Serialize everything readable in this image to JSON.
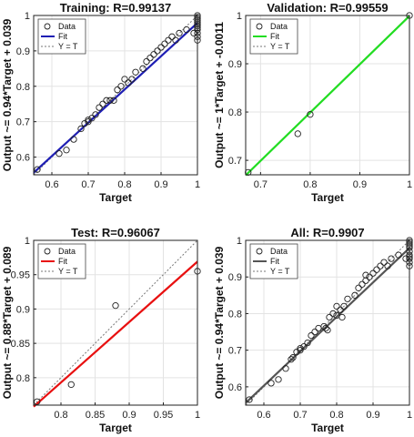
{
  "chart_data": [
    {
      "type": "scatter",
      "title": "Training: R=0.99137",
      "xlabel": "Target",
      "ylabel": "Output ~= 0.94*Target + 0.039",
      "xlim": [
        0.55,
        1.0
      ],
      "ylim": [
        0.55,
        1.0
      ],
      "xticks": [
        "0.6",
        "0.7",
        "0.8",
        "0.9",
        "1"
      ],
      "yticks": [
        "0.6",
        "0.7",
        "0.8",
        "0.9",
        "1"
      ],
      "fit_color": "#1f1fb4",
      "fit": {
        "slope": 0.94,
        "intercept": 0.039
      },
      "legend": [
        "Data",
        "Fit",
        "Y = T"
      ],
      "legend_position": "top-left",
      "series": [
        {
          "name": "Data",
          "points": [
            [
              0.56,
              0.565
            ],
            [
              0.62,
              0.61
            ],
            [
              0.64,
              0.62
            ],
            [
              0.66,
              0.65
            ],
            [
              0.68,
              0.68
            ],
            [
              0.69,
              0.695
            ],
            [
              0.7,
              0.7
            ],
            [
              0.7,
              0.705
            ],
            [
              0.71,
              0.71
            ],
            [
              0.72,
              0.72
            ],
            [
              0.73,
              0.74
            ],
            [
              0.74,
              0.75
            ],
            [
              0.75,
              0.76
            ],
            [
              0.76,
              0.76
            ],
            [
              0.77,
              0.76
            ],
            [
              0.78,
              0.79
            ],
            [
              0.79,
              0.8
            ],
            [
              0.8,
              0.82
            ],
            [
              0.81,
              0.81
            ],
            [
              0.82,
              0.82
            ],
            [
              0.83,
              0.84
            ],
            [
              0.85,
              0.85
            ],
            [
              0.86,
              0.87
            ],
            [
              0.87,
              0.88
            ],
            [
              0.88,
              0.89
            ],
            [
              0.89,
              0.9
            ],
            [
              0.9,
              0.91
            ],
            [
              0.91,
              0.92
            ],
            [
              0.92,
              0.93
            ],
            [
              0.93,
              0.94
            ],
            [
              0.94,
              0.93
            ],
            [
              0.95,
              0.95
            ],
            [
              0.97,
              0.96
            ],
            [
              0.99,
              0.95
            ],
            [
              1.0,
              0.93
            ],
            [
              1.0,
              0.94
            ],
            [
              1.0,
              0.95
            ],
            [
              1.0,
              0.96
            ],
            [
              1.0,
              0.97
            ],
            [
              1.0,
              0.98
            ],
            [
              1.0,
              0.99
            ],
            [
              1.0,
              1.0
            ],
            [
              1.0,
              0.995
            ],
            [
              1.0,
              0.985
            ],
            [
              1.0,
              0.975
            ],
            [
              1.0,
              0.965
            ]
          ]
        }
      ]
    },
    {
      "type": "scatter",
      "title": "Validation: R=0.99559",
      "xlabel": "Target",
      "ylabel": "Output ~= 1*Target + -0.0011",
      "xlim": [
        0.67,
        1.0
      ],
      "ylim": [
        0.67,
        1.0
      ],
      "xticks": [
        "0.7",
        "0.8",
        "0.9",
        "1"
      ],
      "yticks": [
        "0.7",
        "0.8",
        "0.9",
        "1"
      ],
      "fit_color": "#22dd22",
      "fit": {
        "slope": 1.0,
        "intercept": -0.0011
      },
      "legend": [
        "Data",
        "Fit",
        "Y = T"
      ],
      "legend_position": "top-left",
      "series": [
        {
          "name": "Data",
          "points": [
            [
              0.675,
              0.675
            ],
            [
              0.775,
              0.755
            ],
            [
              0.8,
              0.795
            ],
            [
              1.0,
              1.0
            ]
          ]
        }
      ]
    },
    {
      "type": "scatter",
      "title": "Test: R=0.96067",
      "xlabel": "Target",
      "ylabel": "Output ~= 0.88*Target + 0.089",
      "xlim": [
        0.76,
        1.0
      ],
      "ylim": [
        0.76,
        1.0
      ],
      "xticks": [
        "0.8",
        "0.85",
        "0.9",
        "0.95",
        "1"
      ],
      "yticks": [
        "0.8",
        "0.85",
        "0.9",
        "0.95",
        "1"
      ],
      "fit_color": "#e81010",
      "fit": {
        "slope": 0.88,
        "intercept": 0.089
      },
      "legend": [
        "Data",
        "Fit",
        "Y = T"
      ],
      "legend_position": "top-left",
      "series": [
        {
          "name": "Data",
          "points": [
            [
              0.765,
              0.765
            ],
            [
              0.815,
              0.79
            ],
            [
              0.88,
              0.905
            ],
            [
              1.0,
              0.955
            ]
          ]
        }
      ]
    },
    {
      "type": "scatter",
      "title": "All: R=0.9907",
      "xlabel": "Target",
      "ylabel": "Output ~= 0.94*Target + 0.039",
      "xlim": [
        0.55,
        1.0
      ],
      "ylim": [
        0.55,
        1.0
      ],
      "xticks": [
        "0.6",
        "0.7",
        "0.8",
        "0.9",
        "1"
      ],
      "yticks": [
        "0.6",
        "0.7",
        "0.8",
        "0.9",
        "1"
      ],
      "fit_color": "#555555",
      "fit": {
        "slope": 0.94,
        "intercept": 0.039
      },
      "legend": [
        "Data",
        "Fit",
        "Y = T"
      ],
      "legend_position": "top-left",
      "series": [
        {
          "name": "Data",
          "points": [
            [
              0.56,
              0.565
            ],
            [
              0.62,
              0.61
            ],
            [
              0.64,
              0.62
            ],
            [
              0.66,
              0.65
            ],
            [
              0.675,
              0.675
            ],
            [
              0.68,
              0.68
            ],
            [
              0.69,
              0.695
            ],
            [
              0.7,
              0.7
            ],
            [
              0.7,
              0.705
            ],
            [
              0.71,
              0.71
            ],
            [
              0.72,
              0.72
            ],
            [
              0.73,
              0.74
            ],
            [
              0.74,
              0.75
            ],
            [
              0.75,
              0.76
            ],
            [
              0.765,
              0.765
            ],
            [
              0.77,
              0.76
            ],
            [
              0.775,
              0.755
            ],
            [
              0.78,
              0.79
            ],
            [
              0.79,
              0.8
            ],
            [
              0.8,
              0.795
            ],
            [
              0.8,
              0.82
            ],
            [
              0.81,
              0.81
            ],
            [
              0.815,
              0.79
            ],
            [
              0.82,
              0.82
            ],
            [
              0.83,
              0.84
            ],
            [
              0.85,
              0.85
            ],
            [
              0.86,
              0.87
            ],
            [
              0.87,
              0.88
            ],
            [
              0.88,
              0.905
            ],
            [
              0.88,
              0.89
            ],
            [
              0.89,
              0.9
            ],
            [
              0.9,
              0.91
            ],
            [
              0.91,
              0.92
            ],
            [
              0.92,
              0.93
            ],
            [
              0.93,
              0.94
            ],
            [
              0.94,
              0.93
            ],
            [
              0.95,
              0.95
            ],
            [
              0.97,
              0.96
            ],
            [
              0.99,
              0.95
            ],
            [
              1.0,
              0.93
            ],
            [
              1.0,
              0.94
            ],
            [
              1.0,
              0.95
            ],
            [
              1.0,
              0.955
            ],
            [
              1.0,
              0.96
            ],
            [
              1.0,
              0.97
            ],
            [
              1.0,
              0.98
            ],
            [
              1.0,
              0.99
            ],
            [
              1.0,
              1.0
            ],
            [
              1.0,
              0.995
            ],
            [
              1.0,
              0.985
            ]
          ]
        }
      ]
    }
  ]
}
